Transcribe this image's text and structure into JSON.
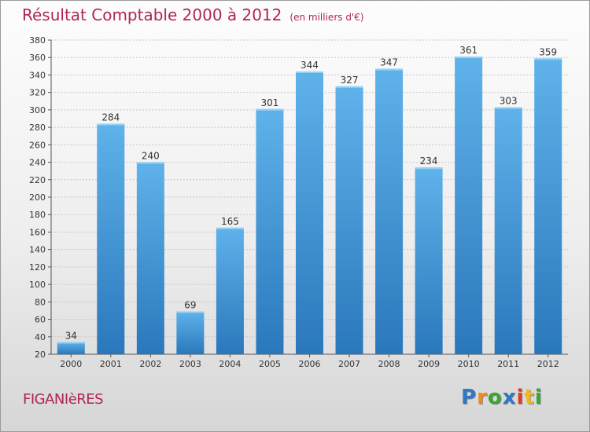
{
  "header": {
    "title": "Résultat Comptable 2000 à 2012",
    "subtitle": "(en milliers d'€)"
  },
  "footer": {
    "commune": "FIGANIèRES",
    "logo_letters": [
      {
        "ch": "P",
        "color": "#2f78c8"
      },
      {
        "ch": "r",
        "color": "#f08a1c"
      },
      {
        "ch": "o",
        "color": "#3aa635"
      },
      {
        "ch": "x",
        "color": "#2f78c8"
      },
      {
        "ch": "i",
        "color": "#e23a2c"
      },
      {
        "ch": "t",
        "color": "#f2b81c"
      },
      {
        "ch": "i",
        "color": "#3aa635"
      }
    ]
  },
  "colors": {
    "bar_light": "#5fb2ea",
    "bar_dark": "#2a78bc",
    "title": "#b0245a"
  },
  "chart_data": {
    "type": "bar",
    "title": "Résultat Comptable 2000 à 2012",
    "unit_note": "(en milliers d'€)",
    "categories": [
      "2000",
      "2001",
      "2002",
      "2003",
      "2004",
      "2005",
      "2006",
      "2007",
      "2008",
      "2009",
      "2010",
      "2011",
      "2012"
    ],
    "values": [
      34,
      284,
      240,
      69,
      165,
      301,
      344,
      327,
      347,
      234,
      361,
      303,
      359
    ],
    "ylim": [
      20,
      380
    ],
    "yticks": [
      20,
      40,
      60,
      80,
      100,
      120,
      140,
      160,
      180,
      200,
      220,
      240,
      260,
      280,
      300,
      320,
      340,
      360,
      380
    ],
    "grid": true,
    "legend": "none"
  }
}
